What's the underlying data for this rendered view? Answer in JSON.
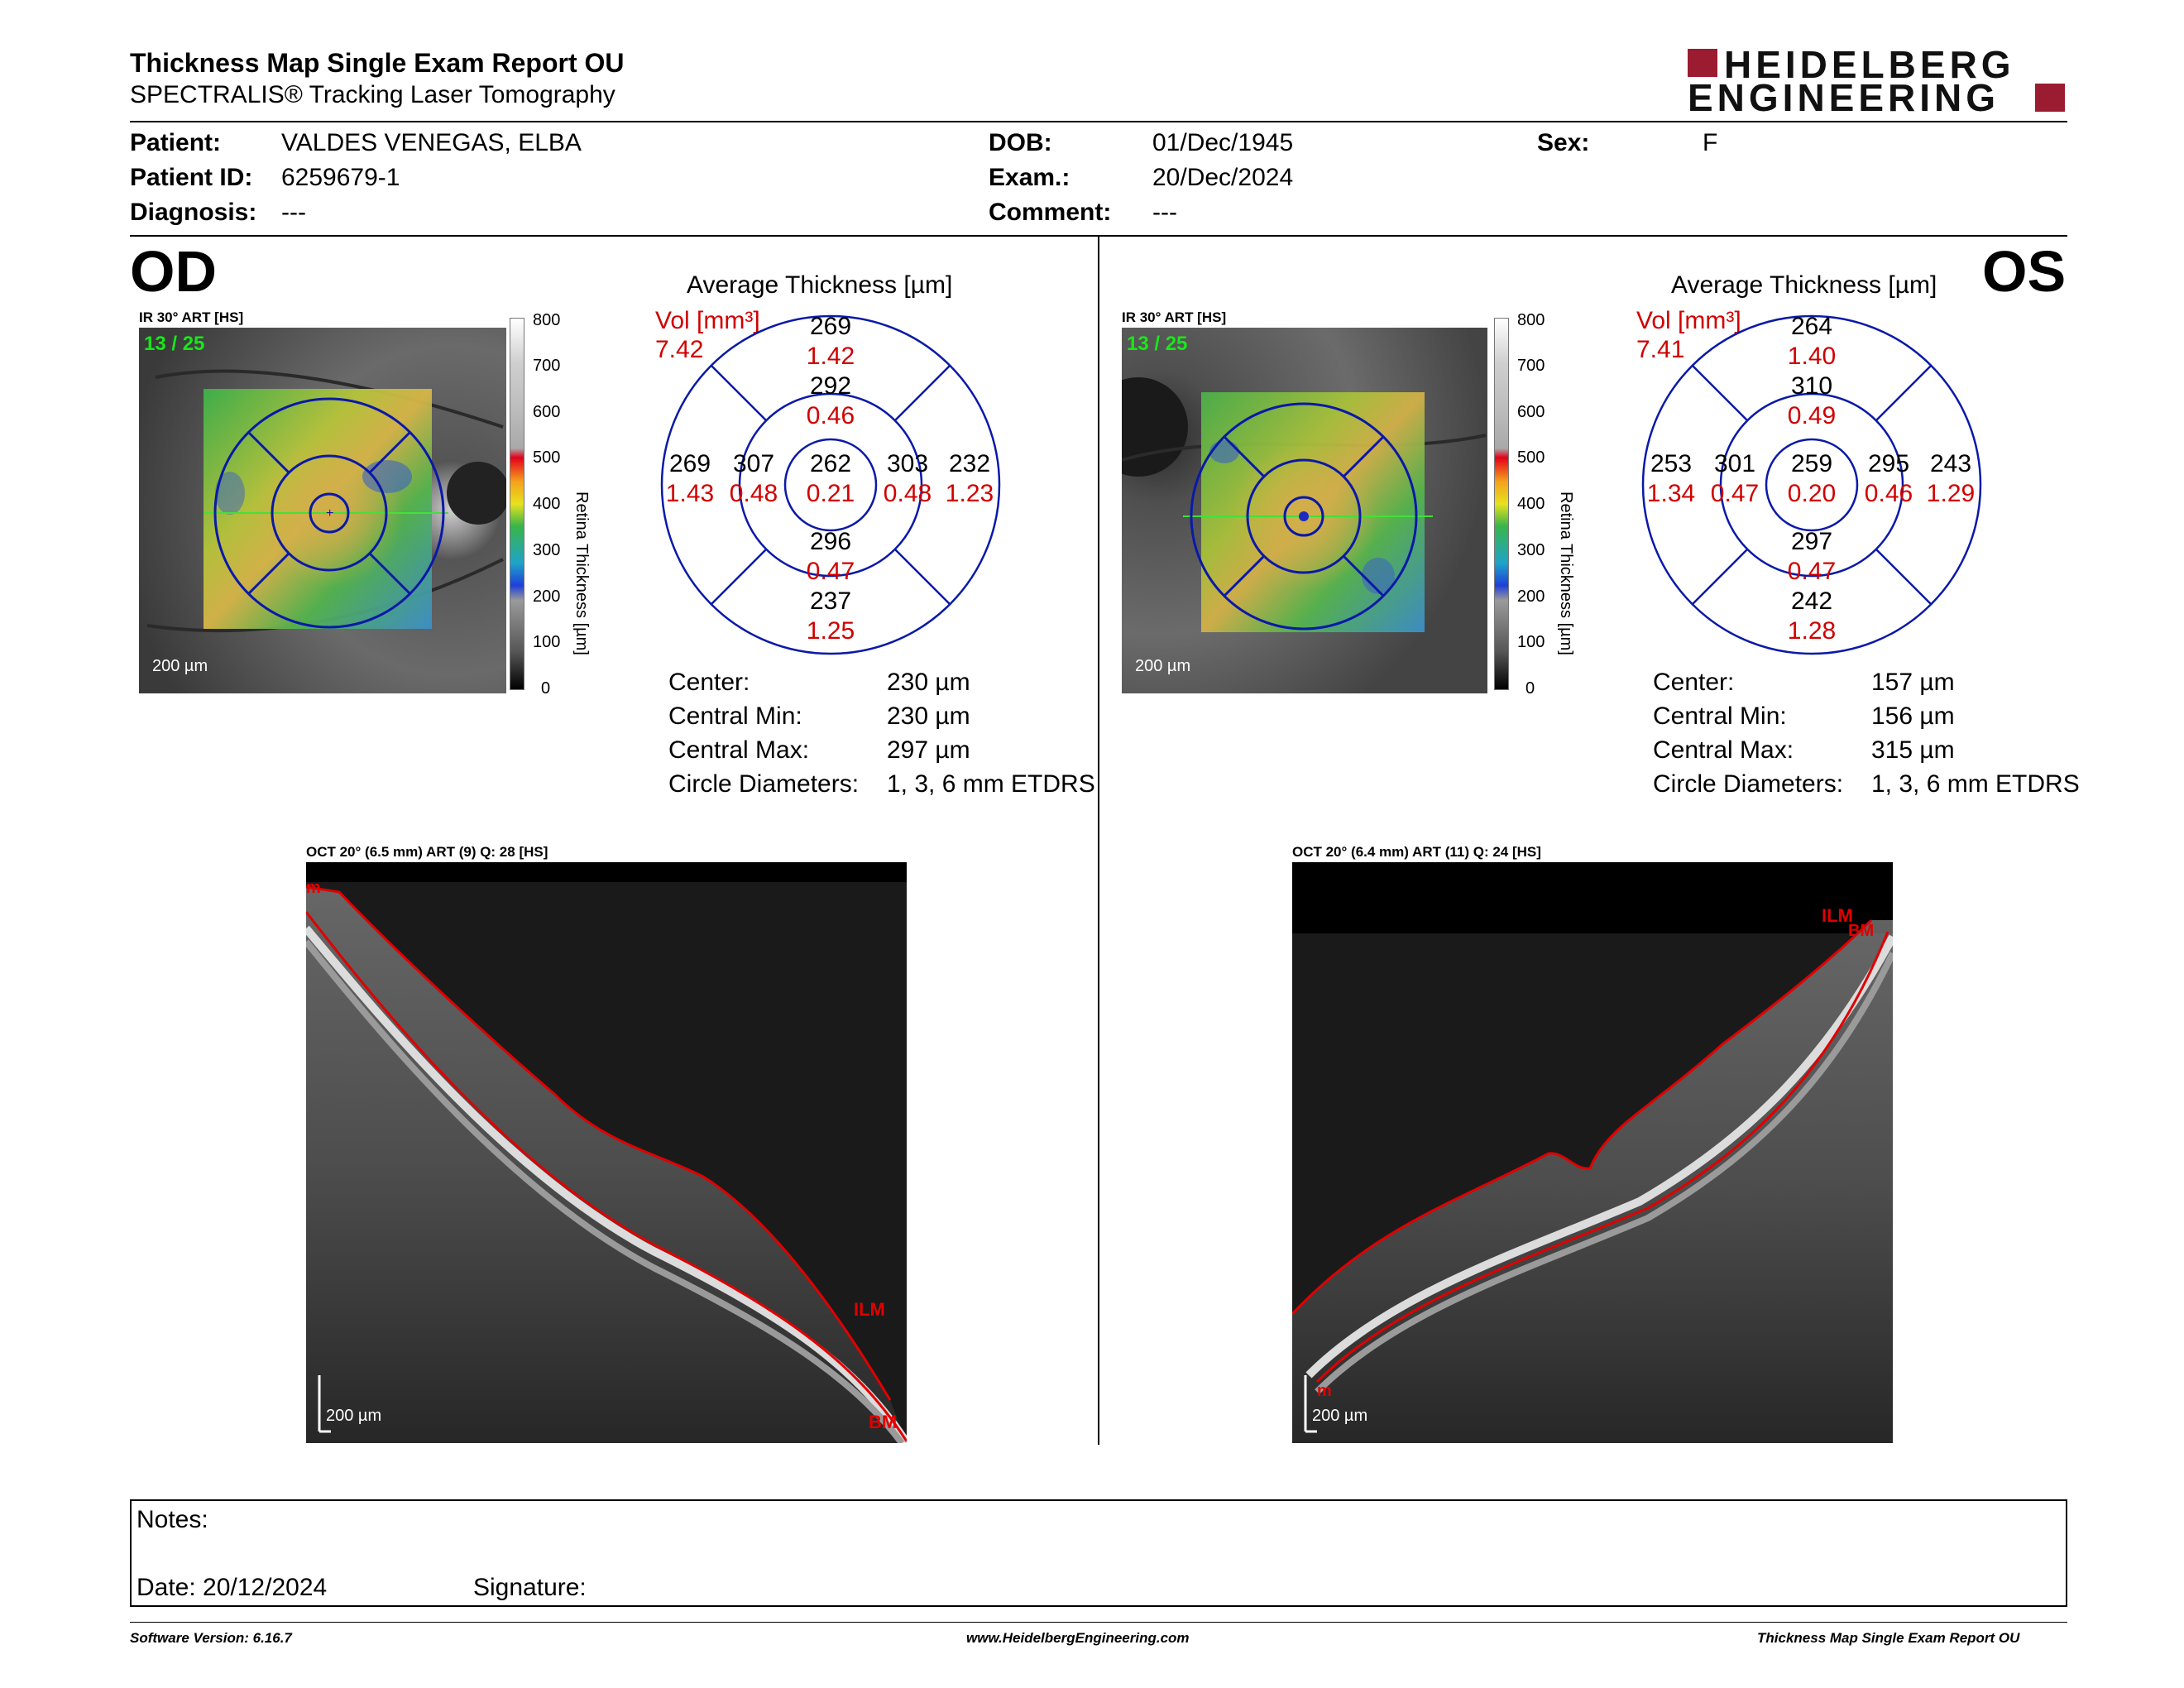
{
  "header": {
    "title": "Thickness Map Single Exam Report OU",
    "subtitle": "SPECTRALIS® Tracking Laser Tomography",
    "logo_line1": "HEIDELBERG",
    "logo_line2": "ENGINEERING"
  },
  "patient": {
    "patient_label": "Patient:",
    "patient_value": "VALDES VENEGAS, ELBA",
    "id_label": "Patient ID:",
    "id_value": "6259679-1",
    "diagnosis_label": "Diagnosis:",
    "diagnosis_value": "---",
    "dob_label": "DOB:",
    "dob_value": "01/Dec/1945",
    "exam_label": "Exam.:",
    "exam_value": "20/Dec/2024",
    "comment_label": "Comment:",
    "comment_value": "---",
    "sex_label": "Sex:",
    "sex_value": "F"
  },
  "scale_bar": {
    "ticks": [
      "800",
      "700",
      "600",
      "500",
      "400",
      "300",
      "200",
      "100",
      "0"
    ],
    "label": "Retina Thickness [µm]"
  },
  "od": {
    "eye": "OD",
    "ir_label": "IR 30° ART [HS]",
    "frame": "13 / 25",
    "scale": "200 µm",
    "avg_title": "Average Thickness [µm]",
    "vol_label": "Vol [mm³]",
    "vol_value": "7.42",
    "grid": {
      "center": {
        "t": "262",
        "v": "0.21"
      },
      "inner_sup": {
        "t": "292",
        "v": "0.46"
      },
      "inner_inf": {
        "t": "296",
        "v": "0.47"
      },
      "inner_left": {
        "t": "307",
        "v": "0.48"
      },
      "inner_right": {
        "t": "303",
        "v": "0.48"
      },
      "outer_sup": {
        "t": "269",
        "v": "1.42"
      },
      "outer_inf": {
        "t": "237",
        "v": "1.25"
      },
      "outer_left": {
        "t": "269",
        "v": "1.43"
      },
      "outer_right": {
        "t": "232",
        "v": "1.23"
      }
    },
    "stats": {
      "center_label": "Center:",
      "center_value": "230 µm",
      "min_label": "Central Min:",
      "min_value": "230 µm",
      "max_label": "Central Max:",
      "max_value": "297 µm",
      "diam_label": "Circle Diameters:",
      "diam_value": "1, 3, 6 mm ETDRS"
    },
    "oct_label": "OCT 20° (6.5 mm) ART (9) Q: 28 [HS]",
    "oct_scale": "200 µm",
    "oct_ilm": "ILM",
    "oct_bm": "BM",
    "oct_m": "m"
  },
  "os": {
    "eye": "OS",
    "ir_label": "IR 30° ART [HS]",
    "frame": "13 / 25",
    "scale": "200 µm",
    "avg_title": "Average Thickness [µm]",
    "vol_label": "Vol [mm³]",
    "vol_value": "7.41",
    "grid": {
      "center": {
        "t": "259",
        "v": "0.20"
      },
      "inner_sup": {
        "t": "310",
        "v": "0.49"
      },
      "inner_inf": {
        "t": "297",
        "v": "0.47"
      },
      "inner_left": {
        "t": "301",
        "v": "0.47"
      },
      "inner_right": {
        "t": "295",
        "v": "0.46"
      },
      "outer_sup": {
        "t": "264",
        "v": "1.40"
      },
      "outer_inf": {
        "t": "242",
        "v": "1.28"
      },
      "outer_left": {
        "t": "253",
        "v": "1.34"
      },
      "outer_right": {
        "t": "243",
        "v": "1.29"
      }
    },
    "stats": {
      "center_label": "Center:",
      "center_value": "157 µm",
      "min_label": "Central Min:",
      "min_value": "156 µm",
      "max_label": "Central Max:",
      "max_value": "315 µm",
      "diam_label": "Circle Diameters:",
      "diam_value": "1, 3, 6 mm ETDRS"
    },
    "oct_label": "OCT 20° (6.4 mm) ART (11) Q: 24 [HS]",
    "oct_scale": "200 µm",
    "oct_ilm": "ILM",
    "oct_bm": "BM",
    "oct_m": "m"
  },
  "notes": {
    "notes_label": "Notes:",
    "date_label": "Date: 20/12/2024",
    "signature_label": "Signature:"
  },
  "footer": {
    "left": "Software Version: 6.16.7",
    "center": "www.HeidelbergEngineering.com",
    "right": "Thickness Map Single Exam Report OU"
  }
}
